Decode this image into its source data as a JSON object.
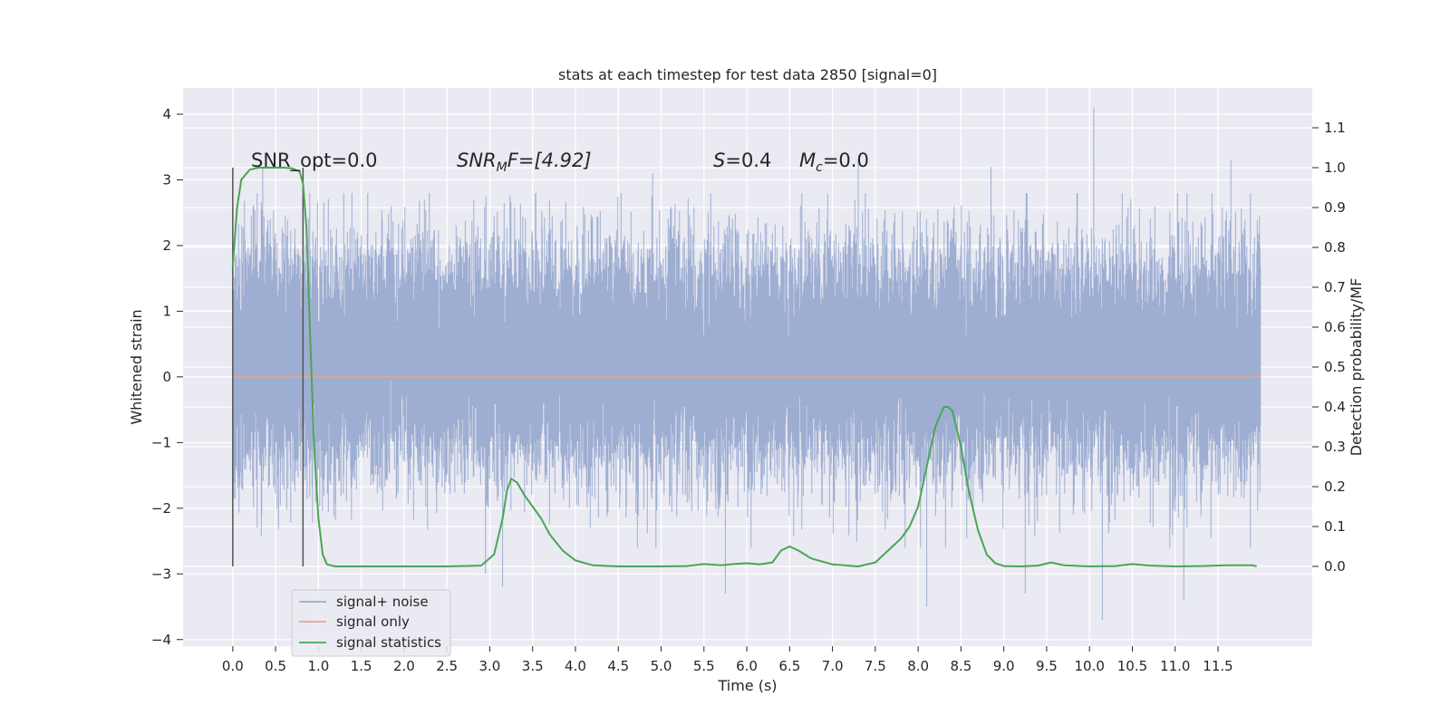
{
  "chart_data": {
    "type": "line",
    "title": "stats at each timestep for test data 2850 [signal=0]",
    "xlabel": "Time (s)",
    "ylabel": "Whitened strain",
    "ylabel_right": "Detection probability/MF",
    "xlim": [
      -0.58,
      12.6
    ],
    "ylim": [
      -4.1,
      4.4
    ],
    "ylim_right": [
      -0.2,
      1.2
    ],
    "x_ticks": [
      0.0,
      0.5,
      1.0,
      1.5,
      2.0,
      2.5,
      3.0,
      3.5,
      4.0,
      4.5,
      5.0,
      5.5,
      6.0,
      6.5,
      7.0,
      7.5,
      8.0,
      8.5,
      9.0,
      9.5,
      10.0,
      10.5,
      11.0,
      11.5
    ],
    "x_tick_labels": [
      "0.0",
      "0.5",
      "1.0",
      "1.5",
      "2.0",
      "2.5",
      "3.0",
      "3.5",
      "4.0",
      "4.5",
      "5.0",
      "5.5",
      "6.0",
      "6.5",
      "7.0",
      "7.5",
      "8.0",
      "8.5",
      "9.0",
      "9.5",
      "10.0",
      "10.5",
      "11.0",
      "11.5"
    ],
    "y_ticks": [
      -4,
      -3,
      -2,
      -1,
      0,
      1,
      2,
      3,
      4
    ],
    "y_tick_labels": [
      "−4",
      "−3",
      "−2",
      "−1",
      "0",
      "1",
      "2",
      "3",
      "4"
    ],
    "y_right_ticks": [
      0.0,
      0.1,
      0.2,
      0.3,
      0.4,
      0.5,
      0.6,
      0.7,
      0.8,
      0.9,
      1.0,
      1.1
    ],
    "y_right_tick_labels": [
      "0.0",
      "0.1",
      "0.2",
      "0.3",
      "0.4",
      "0.5",
      "0.6",
      "0.7",
      "0.8",
      "0.9",
      "1.0",
      "1.1"
    ],
    "grid": true,
    "legend_position": "lower-left",
    "annotations": {
      "snr_opt": "SNR_opt=0.0",
      "snr_mf_base": "SNR",
      "snr_mf_sub": "M",
      "snr_mf_rest": "F=[4.92]",
      "s_label": "S",
      "s_value": "=0.4",
      "mc_label": "M",
      "mc_sub": "c",
      "mc_value": "=0.0"
    },
    "vertical_markers": [
      0.0,
      0.82
    ],
    "series": [
      {
        "name": "signal+ noise",
        "color": "#9aabd0",
        "axis": "left",
        "kind": "noise",
        "x_range": [
          0.0,
          12.0
        ],
        "envelope_typical": [
          -1.8,
          2.3
        ],
        "peaks": [
          [
            0.35,
            3.2
          ],
          [
            1.85,
            2.6
          ],
          [
            2.95,
            -3.0
          ],
          [
            3.15,
            -3.2
          ],
          [
            4.9,
            3.1
          ],
          [
            5.75,
            -3.3
          ],
          [
            7.3,
            3.3
          ],
          [
            8.1,
            -3.5
          ],
          [
            8.85,
            3.2
          ],
          [
            9.25,
            -3.3
          ],
          [
            10.05,
            4.1
          ],
          [
            10.15,
            -3.7
          ],
          [
            11.1,
            -3.4
          ],
          [
            11.65,
            3.3
          ]
        ]
      },
      {
        "name": "signal only",
        "color": "#e5a48f",
        "axis": "left",
        "x": [
          0.0,
          12.0
        ],
        "y": [
          0.0,
          0.0
        ]
      },
      {
        "name": "signal statistics",
        "color": "#4aa556",
        "axis": "right",
        "x": [
          0.0,
          0.05,
          0.1,
          0.2,
          0.3,
          0.4,
          0.5,
          0.6,
          0.7,
          0.78,
          0.82,
          0.86,
          0.9,
          0.95,
          1.0,
          1.05,
          1.1,
          1.2,
          1.5,
          2.0,
          2.5,
          2.9,
          3.05,
          3.15,
          3.2,
          3.25,
          3.32,
          3.4,
          3.5,
          3.6,
          3.7,
          3.85,
          4.0,
          4.2,
          4.5,
          5.0,
          5.3,
          5.5,
          5.7,
          5.85,
          6.0,
          6.15,
          6.3,
          6.4,
          6.5,
          6.6,
          6.75,
          7.0,
          7.3,
          7.5,
          7.7,
          7.8,
          7.9,
          8.0,
          8.1,
          8.2,
          8.3,
          8.35,
          8.4,
          8.5,
          8.6,
          8.7,
          8.8,
          8.9,
          9.0,
          9.2,
          9.4,
          9.55,
          9.7,
          10.0,
          10.3,
          10.5,
          10.7,
          11.0,
          11.3,
          11.6,
          11.9,
          11.95
        ],
        "y": [
          0.75,
          0.9,
          0.97,
          0.995,
          1.0,
          1.0,
          1.0,
          1.0,
          0.998,
          0.99,
          0.96,
          0.85,
          0.6,
          0.3,
          0.12,
          0.03,
          0.005,
          0.0,
          0.0,
          0.0,
          0.0,
          0.002,
          0.03,
          0.12,
          0.19,
          0.22,
          0.21,
          0.18,
          0.15,
          0.12,
          0.08,
          0.04,
          0.015,
          0.003,
          0.0,
          0.0,
          0.001,
          0.006,
          0.003,
          0.006,
          0.008,
          0.005,
          0.01,
          0.04,
          0.05,
          0.04,
          0.02,
          0.005,
          0.0,
          0.01,
          0.05,
          0.07,
          0.1,
          0.15,
          0.25,
          0.35,
          0.4,
          0.4,
          0.39,
          0.3,
          0.18,
          0.09,
          0.03,
          0.008,
          0.001,
          0.0,
          0.002,
          0.01,
          0.003,
          0.0,
          0.001,
          0.006,
          0.002,
          0.0,
          0.001,
          0.003,
          0.003,
          0.0
        ]
      }
    ]
  }
}
